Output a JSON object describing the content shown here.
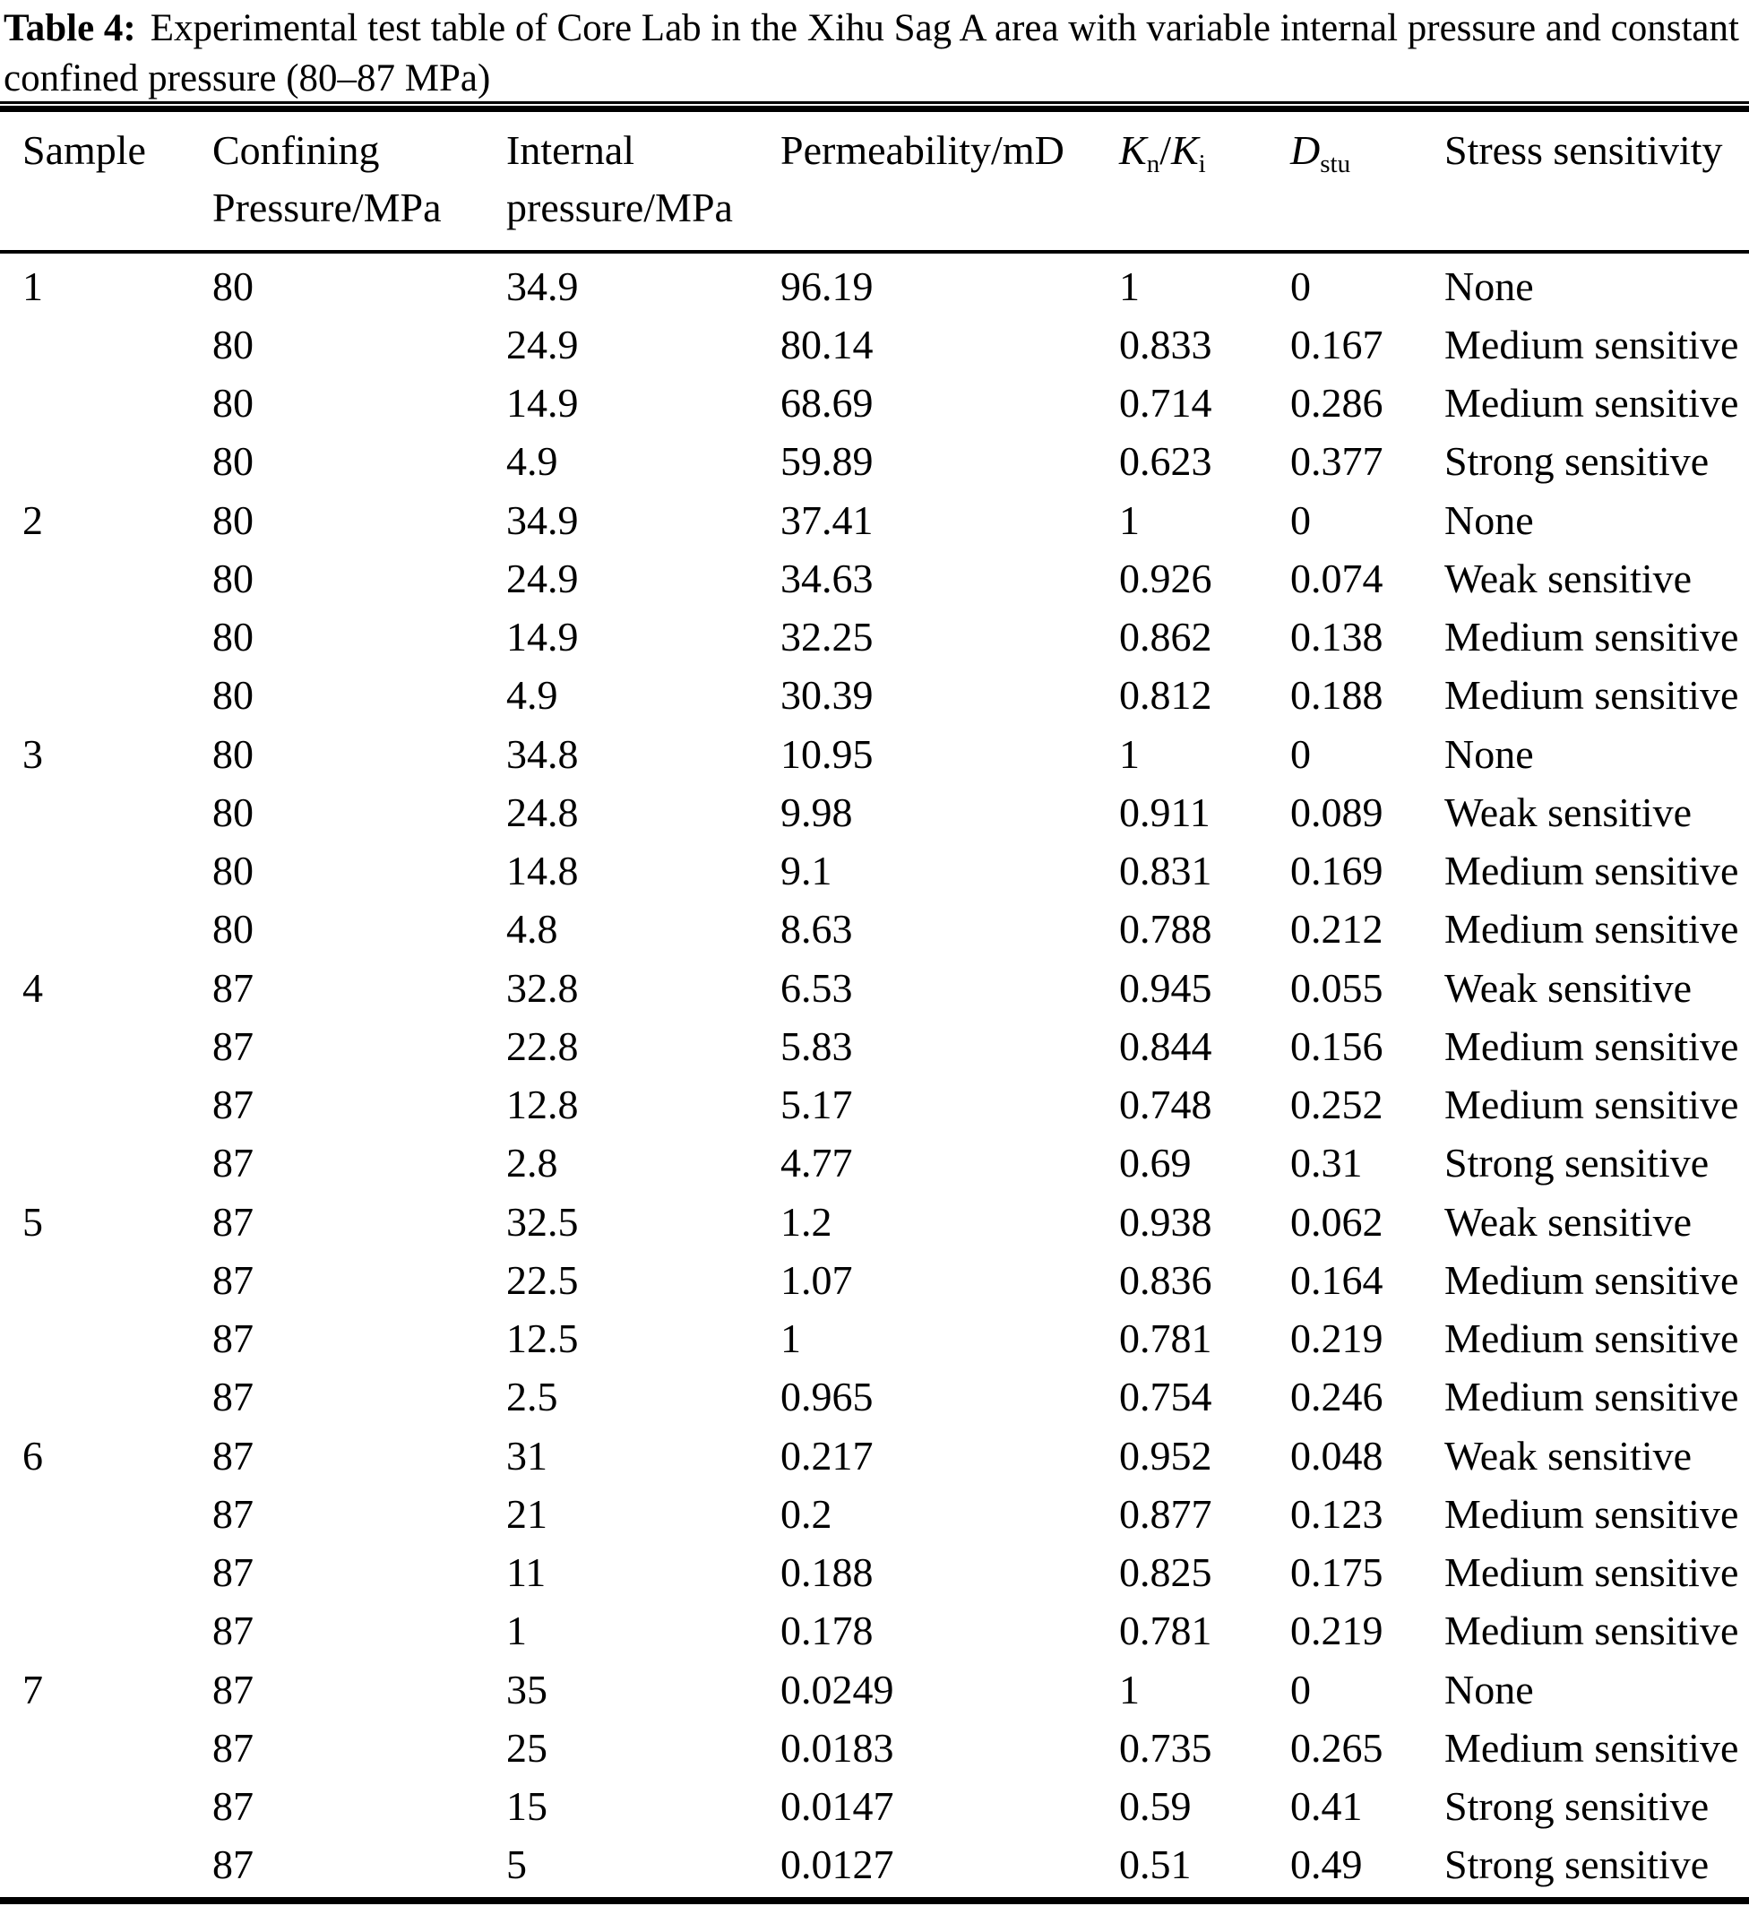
{
  "caption": {
    "label": "Table 4:",
    "line1_rest": "Experimental test table of Core Lab in the Xihu Sag A area with variable internal pressure and constant",
    "line2": "confined pressure (80–87 MPa)"
  },
  "table": {
    "header": {
      "sample": "Sample",
      "confining_line1": "Confining",
      "confining_line2": "Pressure/MPa",
      "internal_line1": "Internal",
      "internal_line2": "pressure/MPa",
      "permeability": "Permeability/mD",
      "kn_base": "K",
      "kn_sub": "n",
      "k_slash": "/",
      "ki_base": "K",
      "ki_sub": "i",
      "d_base": "D",
      "d_sub": "stu",
      "stress": "Stress sensitivity"
    },
    "rows": [
      [
        "1",
        "80",
        "34.9",
        "96.19",
        "1",
        "0",
        "None"
      ],
      [
        "",
        "80",
        "24.9",
        "80.14",
        "0.833",
        "0.167",
        "Medium sensitive"
      ],
      [
        "",
        "80",
        "14.9",
        "68.69",
        "0.714",
        "0.286",
        "Medium sensitive"
      ],
      [
        "",
        "80",
        "4.9",
        "59.89",
        "0.623",
        "0.377",
        "Strong sensitive"
      ],
      [
        "2",
        "80",
        "34.9",
        "37.41",
        "1",
        "0",
        "None"
      ],
      [
        "",
        "80",
        "24.9",
        "34.63",
        "0.926",
        "0.074",
        "Weak sensitive"
      ],
      [
        "",
        "80",
        "14.9",
        "32.25",
        "0.862",
        "0.138",
        "Medium sensitive"
      ],
      [
        "",
        "80",
        "4.9",
        "30.39",
        "0.812",
        "0.188",
        "Medium sensitive"
      ],
      [
        "3",
        "80",
        "34.8",
        "10.95",
        "1",
        "0",
        "None"
      ],
      [
        "",
        "80",
        "24.8",
        "9.98",
        "0.911",
        "0.089",
        "Weak sensitive"
      ],
      [
        "",
        "80",
        "14.8",
        "9.1",
        "0.831",
        "0.169",
        "Medium sensitive"
      ],
      [
        "",
        "80",
        "4.8",
        "8.63",
        "0.788",
        "0.212",
        "Medium sensitive"
      ],
      [
        "4",
        "87",
        "32.8",
        "6.53",
        "0.945",
        "0.055",
        "Weak sensitive"
      ],
      [
        "",
        "87",
        "22.8",
        "5.83",
        "0.844",
        "0.156",
        "Medium sensitive"
      ],
      [
        "",
        "87",
        "12.8",
        "5.17",
        "0.748",
        "0.252",
        "Medium sensitive"
      ],
      [
        "",
        "87",
        "2.8",
        "4.77",
        "0.69",
        "0.31",
        "Strong sensitive"
      ],
      [
        "5",
        "87",
        "32.5",
        "1.2",
        "0.938",
        "0.062",
        "Weak sensitive"
      ],
      [
        "",
        "87",
        "22.5",
        "1.07",
        "0.836",
        "0.164",
        "Medium sensitive"
      ],
      [
        "",
        "87",
        "12.5",
        "1",
        "0.781",
        "0.219",
        "Medium sensitive"
      ],
      [
        "",
        "87",
        "2.5",
        "0.965",
        "0.754",
        "0.246",
        "Medium sensitive"
      ],
      [
        "6",
        "87",
        "31",
        "0.217",
        "0.952",
        "0.048",
        "Weak sensitive"
      ],
      [
        "",
        "87",
        "21",
        "0.2",
        "0.877",
        "0.123",
        "Medium sensitive"
      ],
      [
        "",
        "87",
        "11",
        "0.188",
        "0.825",
        "0.175",
        "Medium sensitive"
      ],
      [
        "",
        "87",
        "1",
        "0.178",
        "0.781",
        "0.219",
        "Medium sensitive"
      ],
      [
        "7",
        "87",
        "35",
        "0.0249",
        "1",
        "0",
        "None"
      ],
      [
        "",
        "87",
        "25",
        "0.0183",
        "0.735",
        "0.265",
        "Medium sensitive"
      ],
      [
        "",
        "87",
        "15",
        "0.0147",
        "0.59",
        "0.41",
        "Strong sensitive"
      ],
      [
        "",
        "87",
        "5",
        "0.0127",
        "0.51",
        "0.49",
        "Strong sensitive"
      ]
    ]
  }
}
